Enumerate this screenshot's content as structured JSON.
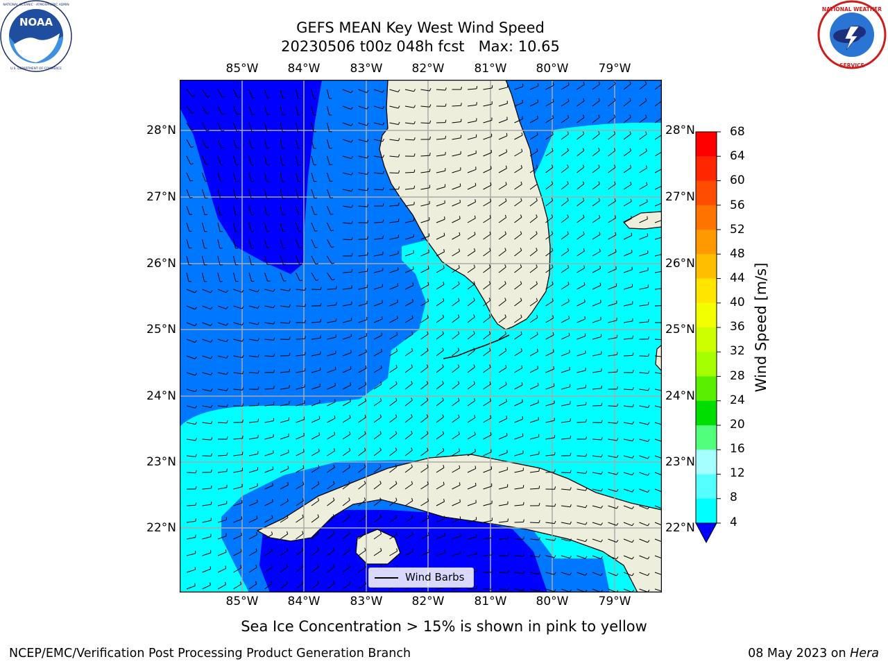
{
  "header": {
    "title_line1": "GEFS MEAN Key West Wind Speed",
    "title_line2": "20230506 t00z 048h fcst   Max: 10.65"
  },
  "logos": {
    "left": {
      "name": "NOAA",
      "ring_text": "NATIONAL OCEANIC AND ATMOSPHERIC ADMINISTRATION · U.S. DEPARTMENT OF COMMERCE"
    },
    "right": {
      "name": "NATIONAL WEATHER SERVICE"
    }
  },
  "map": {
    "lon_labels": [
      "85°W",
      "84°W",
      "83°W",
      "82°W",
      "81°W",
      "80°W",
      "79°W"
    ],
    "lat_labels": [
      "28°N",
      "27°N",
      "26°N",
      "25°N",
      "24°N",
      "23°N",
      "22°N"
    ],
    "legend_label": "Wind Barbs"
  },
  "colorbar": {
    "label": "Wind Speed [m/s]",
    "ticks": [
      "68",
      "64",
      "60",
      "56",
      "52",
      "48",
      "44",
      "40",
      "36",
      "32",
      "28",
      "24",
      "20",
      "16",
      "12",
      "8",
      "4"
    ],
    "colors": [
      "#ff0000",
      "#ff2600",
      "#ff4d00",
      "#ff7300",
      "#ff9900",
      "#ffbf00",
      "#ffe500",
      "#f2ff00",
      "#ccff00",
      "#a6ff00",
      "#5aee00",
      "#00dd00",
      "#52ff7d",
      "#a6ffff",
      "#54ffff",
      "#00ffff",
      "#0077ff"
    ],
    "under_color": "#0000ff"
  },
  "field_colors": {
    "level_4_8": "#0077ff",
    "level_8_12": "#00ffff",
    "below_4": "#0000ff",
    "land": "#eeeedd"
  },
  "caption": "Sea Ice Concentration > 15% is shown in pink to yellow",
  "footer": {
    "left": "NCEP/EMC/Verification Post Processing Product Generation Branch",
    "right_date": "08 May 2023 on ",
    "right_host": "Hera"
  }
}
